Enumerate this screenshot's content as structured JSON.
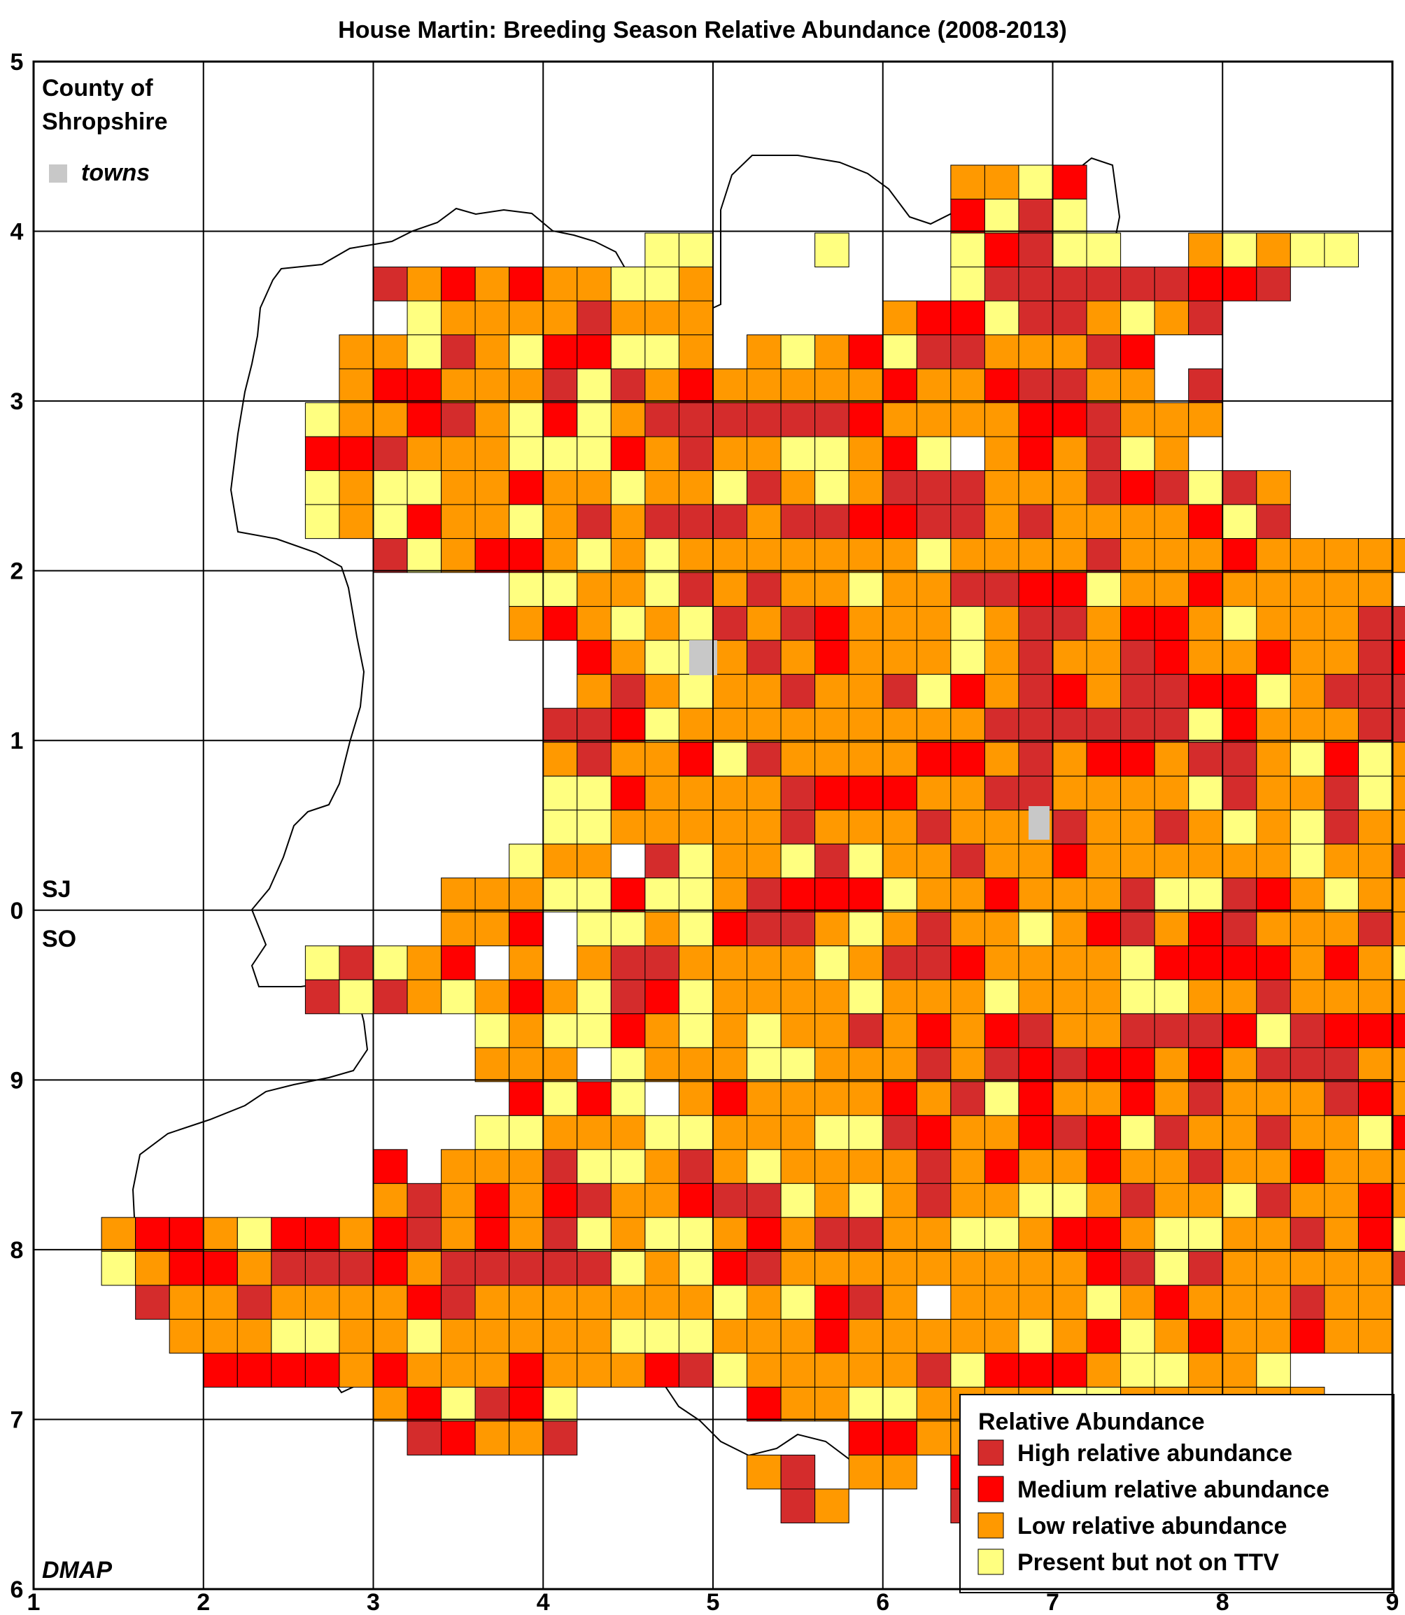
{
  "title": "House Martin: Breeding Season Relative Abundance (2008-2013)",
  "county_label_line1": "County of",
  "county_label_line2": "Shropshire",
  "towns_label": "towns",
  "grid_sj": "SJ",
  "grid_so": "SO",
  "credit": "DMAP",
  "x_ticks": [
    "1",
    "2",
    "3",
    "4",
    "5",
    "6",
    "7",
    "8",
    "9"
  ],
  "y_ticks": [
    "6",
    "7",
    "8",
    "9",
    "0",
    "1",
    "2",
    "3",
    "4",
    "5"
  ],
  "legend": {
    "title": "Relative Abundance",
    "items": [
      {
        "label": "High relative abundance",
        "color": "#d42c2c"
      },
      {
        "label": "Medium relative abundance",
        "color": "#ff0000"
      },
      {
        "label": "Low relative abundance",
        "color": "#ff9900"
      },
      {
        "label": "Present but not on TTV",
        "color": "#ffff80"
      }
    ]
  },
  "colors": {
    "high": "#d42c2c",
    "medium": "#ff0000",
    "low": "#ff9900",
    "present": "#ffff80",
    "town": "#c8c8c8"
  },
  "chart_data": {
    "type": "heatmap",
    "grid_origin": {
      "col": 1,
      "row": 6
    },
    "grid_unit": "2x2 km tetrad (5 per 10 km square)",
    "categories": [
      "High relative abundance",
      "Medium relative abundance",
      "Low relative abundance",
      "Present but not on TTV"
    ],
    "codes": {
      "H": "High relative abundance",
      "M": "Medium relative abundance",
      "L": "Low relative abundance",
      "P": "Present but not on TTV",
      ".": "not recorded"
    },
    "rows_top_to_bottom": [
      "...........................LLPM.......................LL....",
      "...........................MPHP......................MLL....",
      "..................PP...P...PMHPP..LPLPP..............LL....",
      "..........HLMLMLLPPL.......PHHHHHHMMH..............",
      "...........PLLLLHLLL.....LMMPHHLPLH...............",
      ".........LLPHLPMMPPL.LPLMPHHLLLHM.............",
      ".........LMMLLLHPHLMLLLLLMLLMHHLL.H...........",
      "........PLLMHLPMPLHHHHHHMLLLLMMHLLL...........",
      "........MMHLLLPPPMLHLLPPLMP.LMLHPL.",
      "........PLPPLLMLLPLLPHLPLHHHLLLHMHPHL",
      "........PLPMLLPLHLHHHLHHMMHHLHLLLLMPH",
      "..........HPLMMLPLPLLLLLLLPLLLLHLLLMLLLLL.",
      "..............PPLLPHLHLLPLLHHMMPLLMLLLLL",
      "..............LMLPLPHLHMLLLPLHHLMMLPLLLHHL",
      "................MLPPLHLMLLLPLHLLHMLLMLLHMML",
      "................LHLPLLHLLHPMLHMLHHMMPLHHHMP",
      "...............HHMPLLLLLLLLLHHHHHHPMLLLHH",
      "...............LHLLMPHLLLLMMLHLMMLHHLPMPLH",
      "...............PPMLLLLHMMMLLHHLLLLPHLLHPLMPM",
      "...............PPLLLLLHLLLHLLLHLLHLPLPHLLHLL",
      "..............PLL.HPLLPHPLLHLLMLLLLLLPLLHLPMM",
      "............LLLPPMPPLHMMMPLLMLLLHPPHMLPLLLLLH",
      "............LLM.PPLPMHHLPLHLLPLMHLMHLLLHLMLL",
      "........PHPLM.L.LHHLLLLPLHHMLLLLPMMMMLMLPLLL",
      "........HPHLPLMLPHMPLLLLPLLLPLLLPPLLHLLLLLLP",
      ".............PLPPMLPLPLLHLMLMHLLHHHMPHMMMMPL",
      ".............LLL.PLLLPPLLLHLHMHMMLMLHHHLLLLL",
      "..............MPMP.LMLLLLMLHPMLLMLHLLLHMLLMMLL",
      ".............PPLLLPPLLLPPHMLLMHMPHLLHLLPMLLLML",
      "..........M.LLLHPPLHLPLLLLHLMLLMLLHLLMLLLMLLL",
      "..........LHLMLMHLLMHHPLPLHLLPPLHLLPHLLMLLLM",
      "..LMMLPMMLMHLMLHPLPPLMLHHLLPPLMMLPPLLHLMP",
      "..PLMMLHHHMLHHHHHPLPMHLLLLLLLLLMHPHLLLLLH",
      "...HLLHLLLLMHLLLLLLLPLPMHL.LLLLPLMLLLHLL",
      "....LLLPPLLPLLLLLPPPLLLMLLLLLPLMPLMLLMLL",
      ".....MMMMLMLLLMLLLMHPLLLLLHPMMMLPPLLP",
      "..........LMPHMP.....MLLPPLLLLPPLLLLLL",
      "...........HMLLH........MMLLLLMLLLLLL",
      ".....................LH.LL.MMML.......",
      "......................HL...HL........."
    ]
  }
}
